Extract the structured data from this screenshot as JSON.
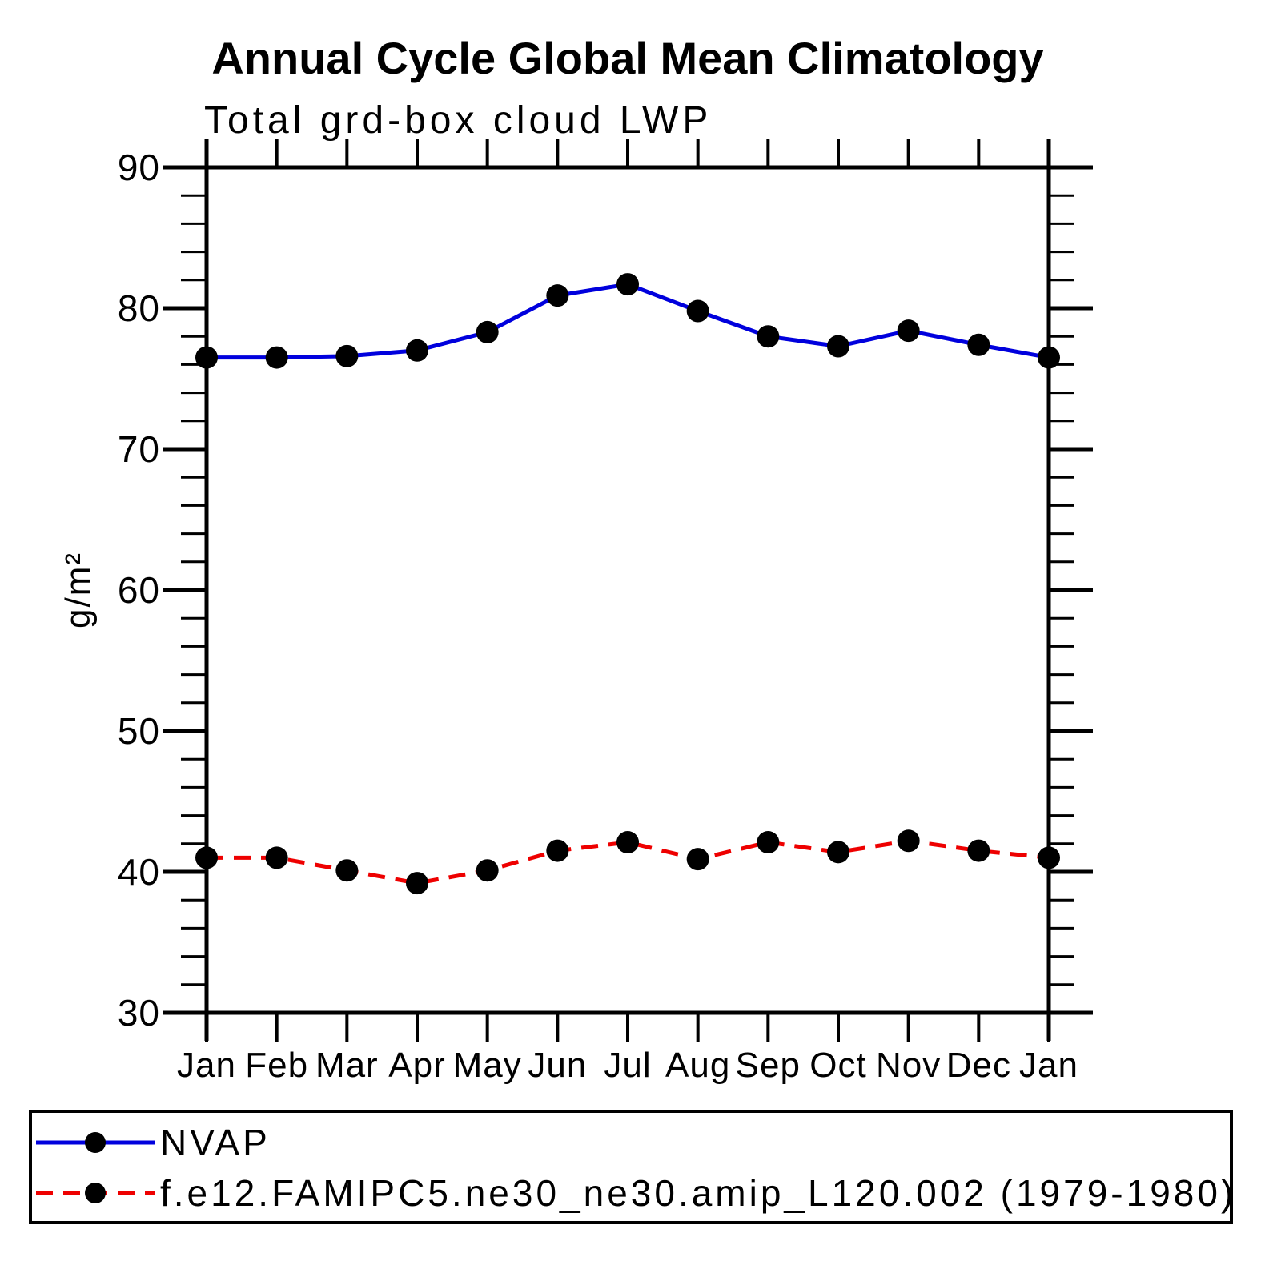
{
  "title": "Annual Cycle Global Mean Climatology",
  "subtitle": "Total grd-box cloud LWP",
  "chart_data": {
    "type": "line",
    "title": "Annual Cycle Global Mean Climatology",
    "subtitle": "Total grd-box cloud LWP",
    "xlabel": "",
    "ylabel": "g/m²",
    "categories": [
      "Jan",
      "Feb",
      "Mar",
      "Apr",
      "May",
      "Jun",
      "Jul",
      "Aug",
      "Sep",
      "Oct",
      "Nov",
      "Dec",
      "Jan"
    ],
    "ylim": [
      30,
      90
    ],
    "ytick_major": [
      90,
      80,
      70,
      60,
      50,
      40,
      30
    ],
    "ytick_minor_step": 2,
    "grid": false,
    "legend_position": "bottom-outside-box",
    "axis_color": "#000000",
    "marker_color": "#000000",
    "series": [
      {
        "name": "NVAP",
        "color": "#0000dd",
        "line_style": "solid",
        "marker": "circle",
        "values": [
          76.5,
          76.5,
          76.6,
          77.0,
          78.3,
          80.9,
          81.7,
          79.8,
          78.0,
          77.3,
          78.4,
          77.4,
          76.5
        ]
      },
      {
        "name": "f.e12.FAMIPC5.ne30_ne30.amip_L120.002 (1979-1980)",
        "color": "#ee0000",
        "line_style": "dashed",
        "marker": "circle",
        "values": [
          41.0,
          41.0,
          40.1,
          39.2,
          40.1,
          41.5,
          42.1,
          40.9,
          42.1,
          41.4,
          42.2,
          41.5,
          41.0
        ]
      }
    ]
  }
}
